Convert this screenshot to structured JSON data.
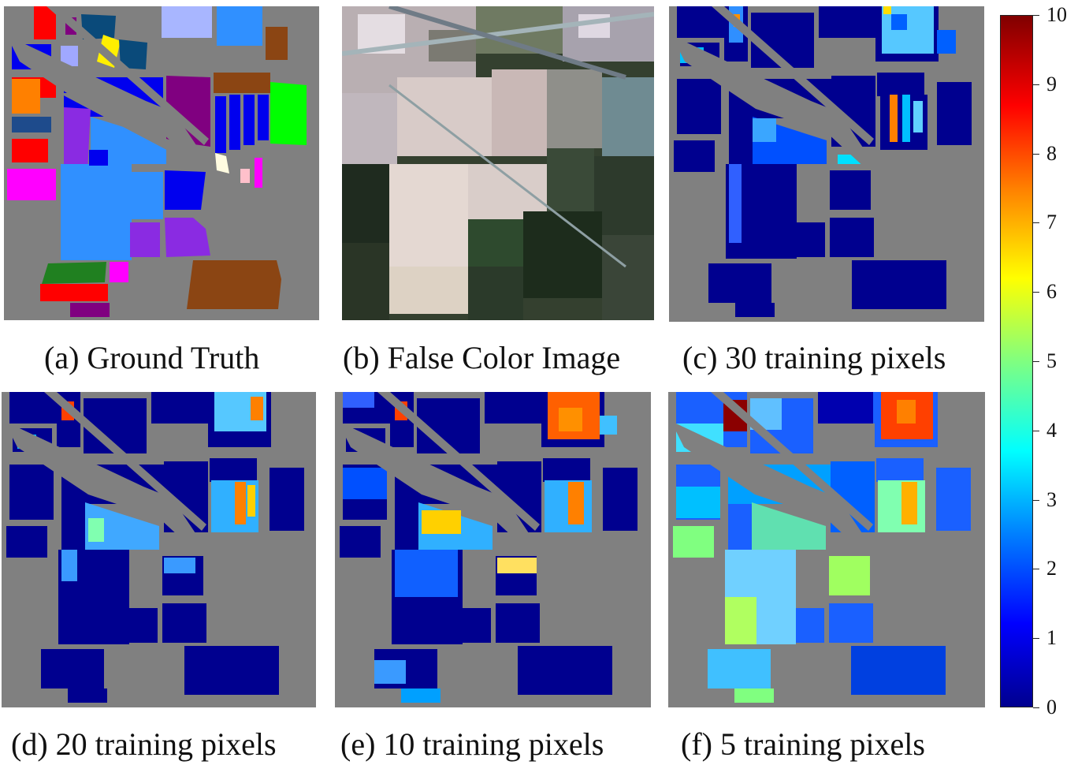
{
  "figure": {
    "panels": [
      {
        "id": "a",
        "caption": "(a) Ground Truth",
        "kind": "ground-truth"
      },
      {
        "id": "b",
        "caption": "(b) False Color Image",
        "kind": "false-color"
      },
      {
        "id": "c",
        "caption": "(c) 30 training pixels",
        "kind": "error-map"
      },
      {
        "id": "d",
        "caption": "(d) 20 training pixels",
        "kind": "error-map"
      },
      {
        "id": "e",
        "caption": "(e) 10 training pixels",
        "kind": "error-map"
      },
      {
        "id": "f",
        "caption": "(f) 5 training pixels",
        "kind": "error-map"
      }
    ],
    "colorbar": {
      "colormap": "jet",
      "min": 0,
      "max": 10,
      "ticks": [
        "0",
        "1",
        "2",
        "3",
        "4",
        "5",
        "6",
        "7",
        "8",
        "9",
        "10"
      ]
    },
    "colors": {
      "background": "#808080",
      "class_palette": [
        "#ff0000",
        "#0000ff",
        "#8080ff",
        "#00008b",
        "#ffff00",
        "#0055aa",
        "#3090ff",
        "#8b4513",
        "#ff8000",
        "#1e4b8c",
        "#800080",
        "#00ff00",
        "#ff00ff",
        "#208020",
        "#ffc0cb",
        "#f5f5dc"
      ]
    }
  }
}
